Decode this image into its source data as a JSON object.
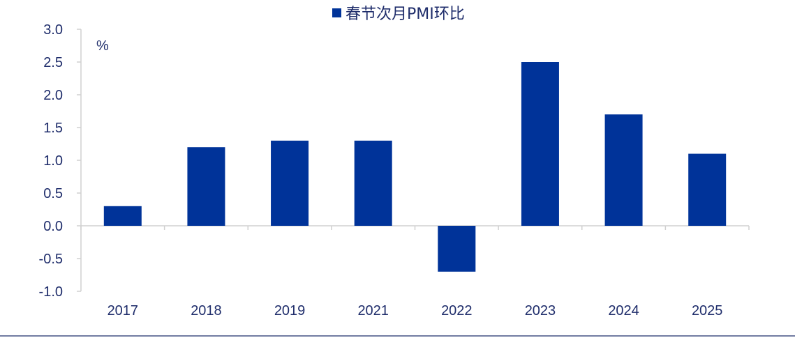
{
  "chart_data": {
    "type": "bar",
    "categories": [
      "2017",
      "2018",
      "2019",
      "2021",
      "2022",
      "2023",
      "2024",
      "2025"
    ],
    "series": [
      {
        "name": "春节次月PMI环比",
        "values": [
          0.3,
          1.2,
          1.3,
          1.3,
          -0.7,
          2.5,
          1.7,
          1.1
        ]
      }
    ],
    "ylabel": "%",
    "ylim": [
      -1.0,
      3.0
    ],
    "yticks": [
      -1.0,
      -0.5,
      0.0,
      0.5,
      1.0,
      1.5,
      2.0,
      2.5,
      3.0
    ],
    "ytick_labels": [
      "-1.0",
      "-0.5",
      "0.0",
      "0.5",
      "1.0",
      "1.5",
      "2.0",
      "2.5",
      "3.0"
    ],
    "legend_position": "top-center",
    "grid": false,
    "bar_color": "#003399"
  }
}
